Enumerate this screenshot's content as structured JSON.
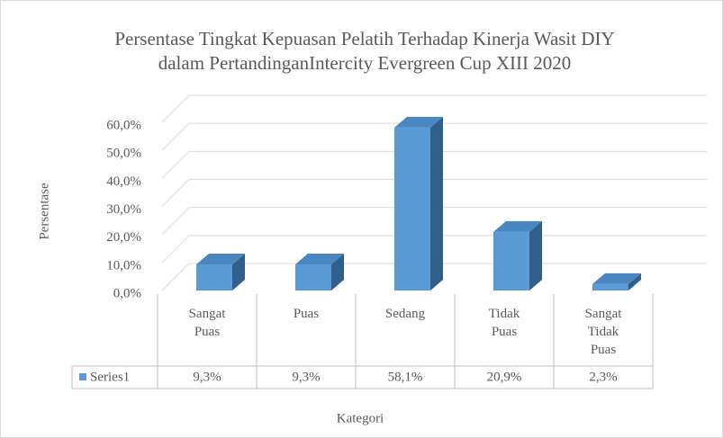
{
  "chart_data": {
    "type": "bar3d",
    "title": "Persentase Tingkat Kepuasan Pelatih Terhadap Kinerja Wasit DIY  dalam PertandinganIntercity Evergreen Cup XIII 2020",
    "y_label": "Persentase",
    "x_label": "Kategori",
    "categories": [
      "Sangat Puas",
      "Puas",
      "Sedang",
      "Tidak Puas",
      "Sangat Tidak Puas"
    ],
    "series": [
      {
        "name": "Series1",
        "color": "#5b9bd5",
        "values": [
          9.3,
          9.3,
          58.1,
          20.9,
          2.3
        ],
        "value_labels": [
          "9,3%",
          "9,3%",
          "58,1%",
          "20,9%",
          "2,3%"
        ]
      }
    ],
    "ylim": [
      0,
      60
    ],
    "yticks": [
      {
        "value": 0,
        "label": "0,0%"
      },
      {
        "value": 10,
        "label": "10,0%"
      },
      {
        "value": 20,
        "label": "20,0%"
      },
      {
        "value": 30,
        "label": "30,0%"
      },
      {
        "value": 40,
        "label": "40,0%"
      },
      {
        "value": 50,
        "label": "50,0%"
      },
      {
        "value": 60,
        "label": "60,0%"
      }
    ],
    "grid": true,
    "data_table": true
  }
}
